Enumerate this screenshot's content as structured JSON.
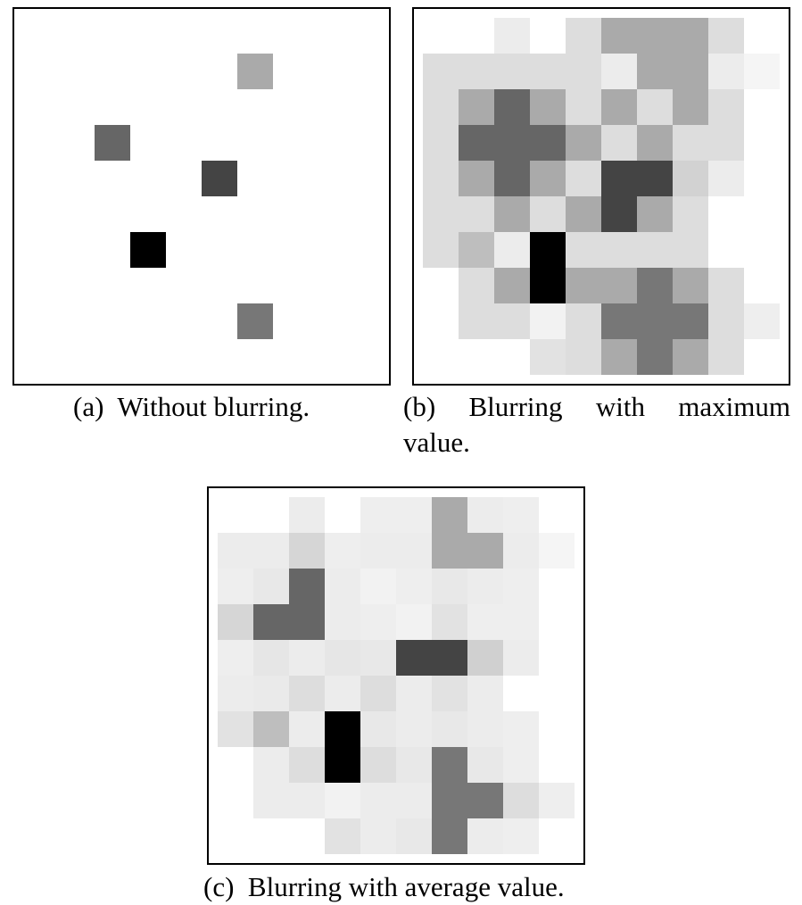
{
  "panels": [
    {
      "id": "a",
      "caption_tag": "(a)",
      "caption_words": [
        "Without",
        "blurring."
      ],
      "grid": [
        [
          255,
          255,
          255,
          255,
          255,
          255,
          255,
          255,
          255,
          255
        ],
        [
          255,
          255,
          255,
          255,
          255,
          255,
          170,
          255,
          255,
          255
        ],
        [
          255,
          255,
          255,
          255,
          255,
          255,
          255,
          255,
          255,
          255
        ],
        [
          255,
          255,
          102,
          255,
          255,
          255,
          255,
          255,
          255,
          255
        ],
        [
          255,
          255,
          255,
          255,
          255,
          68,
          255,
          255,
          255,
          255
        ],
        [
          255,
          255,
          255,
          255,
          255,
          255,
          255,
          255,
          255,
          255
        ],
        [
          255,
          255,
          255,
          0,
          255,
          255,
          255,
          255,
          255,
          255
        ],
        [
          255,
          255,
          255,
          255,
          255,
          255,
          255,
          255,
          255,
          255
        ],
        [
          255,
          255,
          255,
          255,
          255,
          255,
          119,
          255,
          255,
          255
        ],
        [
          255,
          255,
          255,
          255,
          255,
          255,
          255,
          255,
          255,
          255
        ]
      ]
    },
    {
      "id": "b",
      "caption_tag": "(b)",
      "caption_words": [
        "Blurring",
        "with",
        "maximum",
        "value."
      ],
      "grid": [
        [
          255,
          255,
          236,
          255,
          221,
          170,
          170,
          170,
          221,
          255
        ],
        [
          221,
          221,
          221,
          221,
          221,
          236,
          170,
          170,
          236,
          245
        ],
        [
          221,
          170,
          102,
          170,
          221,
          170,
          221,
          170,
          221,
          255
        ],
        [
          221,
          102,
          102,
          102,
          170,
          221,
          170,
          221,
          221,
          255
        ],
        [
          221,
          170,
          102,
          170,
          221,
          68,
          68,
          210,
          236,
          255
        ],
        [
          221,
          221,
          170,
          221,
          170,
          68,
          170,
          221,
          255,
          255
        ],
        [
          221,
          190,
          236,
          0,
          221,
          221,
          221,
          221,
          255,
          255
        ],
        [
          255,
          221,
          170,
          0,
          170,
          170,
          119,
          170,
          221,
          255
        ],
        [
          255,
          221,
          221,
          242,
          221,
          119,
          119,
          119,
          221,
          238
        ],
        [
          255,
          255,
          255,
          226,
          221,
          170,
          119,
          170,
          221,
          255
        ]
      ]
    },
    {
      "id": "c",
      "caption_tag": "(c)",
      "caption_words": [
        "Blurring",
        "with",
        "average",
        "value."
      ],
      "grid": [
        [
          255,
          255,
          236,
          255,
          238,
          238,
          170,
          236,
          238,
          255
        ],
        [
          236,
          236,
          214,
          238,
          236,
          236,
          170,
          170,
          236,
          245
        ],
        [
          238,
          232,
          102,
          236,
          242,
          238,
          232,
          236,
          238,
          255
        ],
        [
          214,
          102,
          102,
          236,
          238,
          242,
          226,
          238,
          238,
          255
        ],
        [
          238,
          230,
          236,
          230,
          232,
          68,
          68,
          208,
          236,
          255
        ],
        [
          236,
          234,
          221,
          236,
          221,
          236,
          226,
          236,
          255,
          255
        ],
        [
          226,
          190,
          236,
          0,
          232,
          236,
          232,
          236,
          238,
          255
        ],
        [
          255,
          236,
          221,
          0,
          221,
          232,
          119,
          232,
          238,
          255
        ],
        [
          255,
          236,
          236,
          242,
          236,
          236,
          119,
          119,
          221,
          238
        ],
        [
          255,
          255,
          255,
          226,
          236,
          232,
          119,
          236,
          238,
          255
        ]
      ]
    }
  ]
}
